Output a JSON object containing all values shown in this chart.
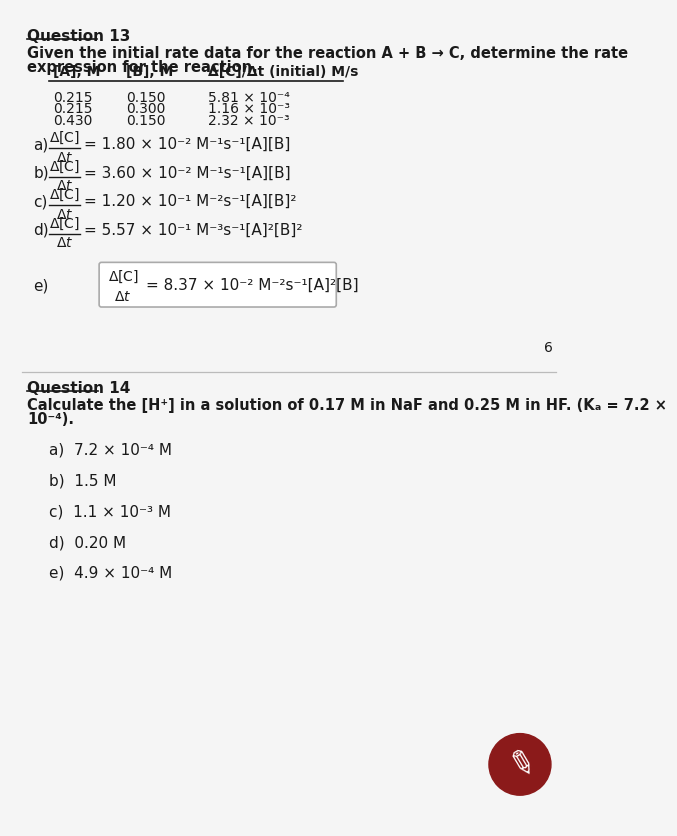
{
  "bg_color": "#f5f5f5",
  "q13_title": "Question 13",
  "q13_intro_1": "Given the initial rate data for the reaction A + B → C, determine the rate",
  "q13_intro_2": "expression for the reaction.",
  "table_headers": [
    "[A], M",
    "[B], M",
    "Δ[C]/Δt (initial) M/s"
  ],
  "table_data": [
    [
      "0.215",
      "0.150",
      "5.81 × 10⁻⁴"
    ],
    [
      "0.215",
      "0.300",
      "1.16 × 10⁻³"
    ],
    [
      "0.430",
      "0.150",
      "2.32 × 10⁻³"
    ]
  ],
  "q13_options": [
    [
      "a)",
      "= 1.80 × 10⁻² M⁻¹s⁻¹[A][B]"
    ],
    [
      "b)",
      "= 3.60 × 10⁻² M⁻¹s⁻¹[A][B]"
    ],
    [
      "c)",
      "= 1.20 × 10⁻¹ M⁻²s⁻¹[A][B]²"
    ],
    [
      "d)",
      "= 5.57 × 10⁻¹ M⁻³s⁻¹[A]²[B]²"
    ]
  ],
  "q13_e_boxed": "= 8.37 × 10⁻² M⁻²s⁻¹[A]²[B]",
  "page_number": "6",
  "q14_title": "Question 14",
  "q14_intro_1": "Calculate the [H⁺] in a solution of 0.17 M in NaF and 0.25 M in HF. (Kₐ = 7.2 ×",
  "q14_intro_2": "10⁻⁴).",
  "q14_options": [
    "a)  7.2 × 10⁻⁴ M",
    "b)  1.5 M",
    "c)  1.1 × 10⁻³ M",
    "d)  0.20 M",
    "e)  4.9 × 10⁻⁴ M"
  ],
  "text_color": "#1a1a1a"
}
